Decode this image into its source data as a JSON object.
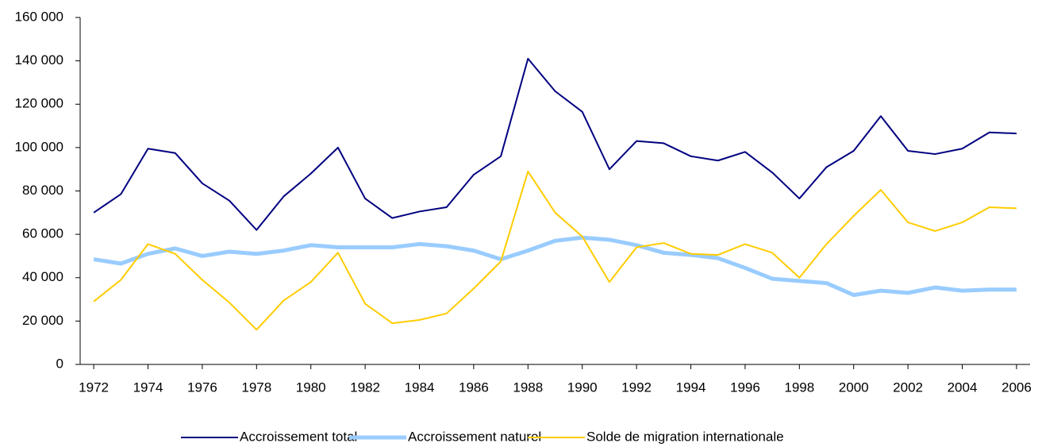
{
  "chart_data": {
    "type": "line",
    "x": [
      1972,
      1973,
      1974,
      1975,
      1976,
      1977,
      1978,
      1979,
      1980,
      1981,
      1982,
      1983,
      1984,
      1985,
      1986,
      1987,
      1988,
      1989,
      1990,
      1991,
      1992,
      1993,
      1994,
      1995,
      1996,
      1997,
      1998,
      1999,
      2000,
      2001,
      2002,
      2003,
      2004,
      2005,
      2006
    ],
    "xlim": [
      1971.5,
      2006.5
    ],
    "xticks": [
      1972,
      1974,
      1976,
      1978,
      1980,
      1982,
      1984,
      1986,
      1988,
      1990,
      1992,
      1994,
      1996,
      1998,
      2000,
      2002,
      2004,
      2006
    ],
    "ylim": [
      0,
      160000
    ],
    "yticks": [
      {
        "value": 0,
        "label": "0"
      },
      {
        "value": 20000,
        "label": "20 000"
      },
      {
        "value": 40000,
        "label": "40 000"
      },
      {
        "value": 60000,
        "label": "60 000"
      },
      {
        "value": 80000,
        "label": "80 000"
      },
      {
        "value": 100000,
        "label": "100 000"
      },
      {
        "value": 120000,
        "label": "120 000"
      },
      {
        "value": 140000,
        "label": "140 000"
      },
      {
        "value": 160000,
        "label": "160 000"
      }
    ],
    "legend": "bottom",
    "series": [
      {
        "name": "Accroissement total",
        "color": "#000080",
        "values": [
          70000,
          78500,
          99500,
          97500,
          83500,
          75500,
          62000,
          77500,
          88000,
          100000,
          76500,
          67500,
          70500,
          72500,
          87500,
          96000,
          141000,
          126000,
          116500,
          90000,
          103000,
          102000,
          96000,
          94000,
          98000,
          88500,
          76500,
          91000,
          98500,
          114500,
          98500,
          97000,
          99500,
          107000,
          106500
        ]
      },
      {
        "name": "Accroissement naturel",
        "color": "#99ccff",
        "values": [
          48500,
          46500,
          51000,
          53500,
          50000,
          52000,
          51000,
          52500,
          55000,
          54000,
          54000,
          54000,
          55500,
          54500,
          52500,
          48500,
          52500,
          57000,
          58500,
          57500,
          55000,
          51500,
          50500,
          49000,
          44500,
          39500,
          38500,
          37500,
          32000,
          34000,
          33000,
          35500,
          34000,
          34500,
          34500
        ]
      },
      {
        "name": "Solde de migration internationale",
        "color": "#ffcc00",
        "values": [
          29000,
          39000,
          55500,
          51000,
          39000,
          28500,
          16000,
          29500,
          38000,
          51500,
          28000,
          19000,
          20500,
          23500,
          35000,
          47500,
          89000,
          70000,
          59000,
          38000,
          54000,
          56000,
          51000,
          50500,
          55500,
          51500,
          40000,
          55500,
          68500,
          80500,
          65500,
          61500,
          65500,
          72500,
          72000
        ]
      }
    ]
  }
}
